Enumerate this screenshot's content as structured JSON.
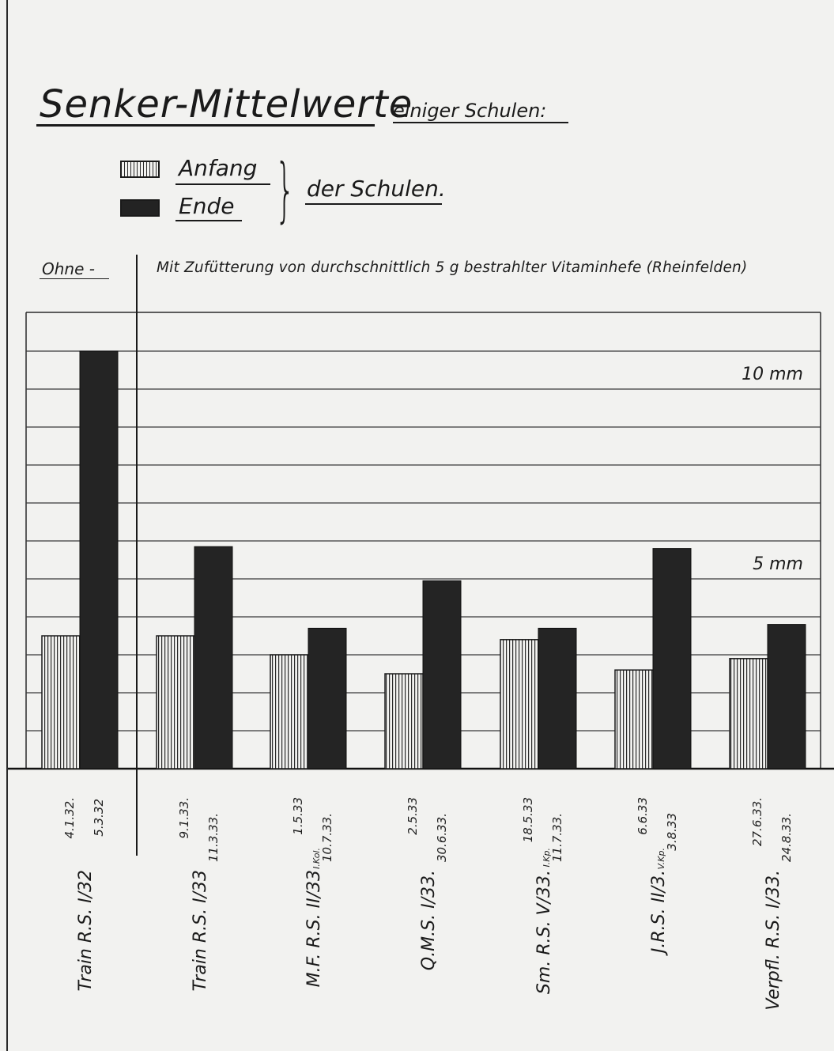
{
  "title": "Senker-Mittelwerte",
  "subtitle": "einiger Schulen:",
  "legend": {
    "items": [
      {
        "label": "Anfang",
        "pattern": "vertical-hatch"
      },
      {
        "label": "Ende",
        "pattern": "solid-dark"
      }
    ],
    "group_label": "der Schulen."
  },
  "sections": {
    "without": "Ohne -",
    "with": "Mit Zufütterung von durchschnittlich 5 g bestrahlter Vitaminhefe (Rheinfelden)"
  },
  "reference_labels": [
    {
      "value": 10,
      "text": "10 mm"
    },
    {
      "value": 5,
      "text": "5 mm"
    }
  ],
  "chart_data": {
    "type": "bar",
    "title": "Senker-Mittelwerte",
    "xlabel": "",
    "ylabel": "",
    "ylim": [
      0,
      12
    ],
    "grid": true,
    "legend_position": "top-left",
    "categories": [
      "Train R.S. I/32",
      "Train R.S. I/33",
      "M.F. R.S. II/33",
      "Q.M.S. I/33.",
      "Sm. R.S. V/33.",
      "J.R.S. II/3.",
      "Verpfl. R.S. I/33."
    ],
    "series": [
      {
        "name": "Anfang",
        "values": [
          3.5,
          3.5,
          3.0,
          2.5,
          3.4,
          2.6,
          2.9
        ]
      },
      {
        "name": "Ende",
        "values": [
          11.0,
          5.85,
          3.7,
          4.95,
          3.7,
          5.8,
          3.8
        ]
      }
    ],
    "date_labels": [
      {
        "start": "4.1.32.",
        "end": "5.3.32",
        "note": ""
      },
      {
        "start": "9.1.33.",
        "end": "11.3.33.",
        "note": ""
      },
      {
        "start": "1.5.33",
        "end": "10.7.33.",
        "note": "I.Kol."
      },
      {
        "start": "2.5.33",
        "end": "30.6.33.",
        "note": ""
      },
      {
        "start": "18.5.33",
        "end": "11.7.33.",
        "note": "I.Kp."
      },
      {
        "start": "6.6.33",
        "end": "3.8.33",
        "note": "V.Kp."
      },
      {
        "start": "27.6.33.",
        "end": "24.8.33.",
        "note": ""
      }
    ]
  }
}
